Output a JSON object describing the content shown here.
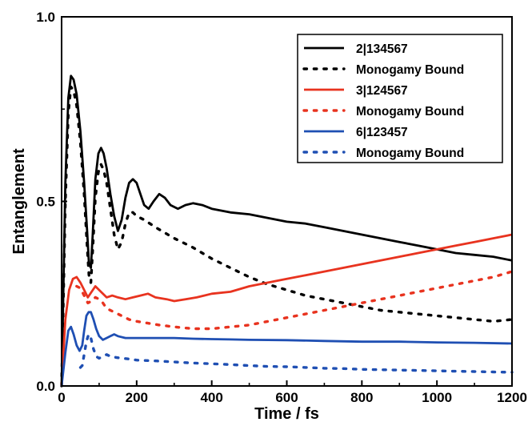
{
  "chart_data": {
    "type": "line",
    "title": "",
    "xlabel": "Time / fs",
    "ylabel": "Entanglement",
    "xlim": [
      0,
      1200
    ],
    "ylim": [
      0.0,
      1.0
    ],
    "x_ticks": [
      0,
      200,
      400,
      600,
      800,
      1000,
      1200
    ],
    "y_ticks": [
      0.0,
      0.5,
      1.0
    ],
    "x_tick_labels": [
      "0",
      "200",
      "400",
      "600",
      "800",
      "1000",
      "1200"
    ],
    "y_tick_labels": [
      "0.0",
      "0.5",
      "1.0"
    ],
    "grid": false,
    "legend_position": "top-right",
    "series": [
      {
        "name": "2|134567",
        "color": "#000000",
        "style": "solid",
        "x": [
          0,
          10,
          18,
          25,
          32,
          40,
          50,
          60,
          68,
          73,
          78,
          83,
          90,
          98,
          105,
          112,
          120,
          130,
          140,
          150,
          160,
          170,
          180,
          190,
          200,
          210,
          220,
          232,
          245,
          260,
          275,
          290,
          310,
          330,
          350,
          375,
          400,
          450,
          500,
          550,
          600,
          650,
          700,
          750,
          800,
          850,
          900,
          950,
          1000,
          1050,
          1100,
          1150,
          1200
        ],
        "y": [
          0.0,
          0.55,
          0.78,
          0.84,
          0.83,
          0.79,
          0.69,
          0.55,
          0.42,
          0.33,
          0.32,
          0.41,
          0.56,
          0.63,
          0.645,
          0.63,
          0.59,
          0.52,
          0.46,
          0.42,
          0.45,
          0.51,
          0.55,
          0.56,
          0.55,
          0.52,
          0.49,
          0.48,
          0.5,
          0.52,
          0.51,
          0.49,
          0.48,
          0.49,
          0.495,
          0.49,
          0.48,
          0.47,
          0.465,
          0.455,
          0.445,
          0.44,
          0.43,
          0.42,
          0.41,
          0.4,
          0.39,
          0.38,
          0.37,
          0.36,
          0.355,
          0.35,
          0.34
        ]
      },
      {
        "name": "Monogamy Bound",
        "color": "#000000",
        "style": "dotted",
        "x": [
          0,
          10,
          18,
          25,
          32,
          40,
          50,
          60,
          68,
          73,
          78,
          83,
          90,
          98,
          105,
          112,
          120,
          130,
          140,
          150,
          160,
          170,
          180,
          190,
          200,
          220,
          250,
          300,
          350,
          400,
          450,
          500,
          550,
          600,
          650,
          700,
          750,
          800,
          850,
          900,
          950,
          1000,
          1050,
          1100,
          1150,
          1200
        ],
        "y": [
          0.0,
          0.5,
          0.74,
          0.81,
          0.8,
          0.76,
          0.66,
          0.52,
          0.38,
          0.3,
          0.28,
          0.37,
          0.51,
          0.58,
          0.6,
          0.585,
          0.55,
          0.48,
          0.41,
          0.37,
          0.39,
          0.44,
          0.47,
          0.47,
          0.46,
          0.45,
          0.43,
          0.4,
          0.375,
          0.345,
          0.32,
          0.295,
          0.275,
          0.26,
          0.245,
          0.235,
          0.225,
          0.215,
          0.205,
          0.2,
          0.195,
          0.19,
          0.185,
          0.18,
          0.175,
          0.18
        ]
      },
      {
        "name": "3|124567",
        "color": "#e8331f",
        "style": "solid",
        "x": [
          0,
          10,
          20,
          30,
          40,
          50,
          60,
          70,
          80,
          90,
          100,
          110,
          120,
          135,
          150,
          170,
          190,
          210,
          230,
          250,
          280,
          300,
          330,
          360,
          400,
          450,
          500,
          550,
          600,
          650,
          700,
          750,
          800,
          850,
          900,
          950,
          1000,
          1050,
          1100,
          1150,
          1200
        ],
        "y": [
          0.0,
          0.18,
          0.26,
          0.29,
          0.295,
          0.28,
          0.26,
          0.24,
          0.255,
          0.27,
          0.26,
          0.25,
          0.24,
          0.245,
          0.24,
          0.235,
          0.24,
          0.245,
          0.25,
          0.24,
          0.235,
          0.23,
          0.235,
          0.24,
          0.25,
          0.255,
          0.27,
          0.28,
          0.29,
          0.3,
          0.31,
          0.32,
          0.33,
          0.34,
          0.35,
          0.36,
          0.37,
          0.38,
          0.39,
          0.4,
          0.41
        ]
      },
      {
        "name": "Monogamy Bound",
        "color": "#e8331f",
        "style": "dotted",
        "x": [
          40,
          50,
          60,
          70,
          80,
          90,
          100,
          110,
          120,
          140,
          160,
          180,
          200,
          230,
          260,
          300,
          350,
          400,
          450,
          500,
          550,
          600,
          650,
          700,
          750,
          800,
          850,
          900,
          950,
          1000,
          1050,
          1100,
          1150,
          1200
        ],
        "y": [
          0.27,
          0.265,
          0.245,
          0.225,
          0.23,
          0.24,
          0.235,
          0.225,
          0.21,
          0.2,
          0.19,
          0.18,
          0.175,
          0.17,
          0.165,
          0.16,
          0.155,
          0.155,
          0.16,
          0.165,
          0.175,
          0.185,
          0.195,
          0.205,
          0.215,
          0.225,
          0.235,
          0.245,
          0.255,
          0.265,
          0.275,
          0.285,
          0.295,
          0.31
        ]
      },
      {
        "name": "6|123457",
        "color": "#1f4fb3",
        "style": "solid",
        "x": [
          0,
          10,
          18,
          25,
          32,
          40,
          48,
          55,
          60,
          66,
          72,
          78,
          85,
          92,
          100,
          110,
          120,
          130,
          140,
          150,
          170,
          200,
          250,
          300,
          350,
          400,
          450,
          500,
          600,
          700,
          800,
          900,
          1000,
          1100,
          1200
        ],
        "y": [
          0.0,
          0.09,
          0.15,
          0.16,
          0.14,
          0.11,
          0.095,
          0.11,
          0.15,
          0.19,
          0.2,
          0.2,
          0.18,
          0.155,
          0.135,
          0.125,
          0.13,
          0.135,
          0.14,
          0.135,
          0.13,
          0.13,
          0.13,
          0.13,
          0.128,
          0.127,
          0.126,
          0.125,
          0.124,
          0.122,
          0.12,
          0.12,
          0.118,
          0.117,
          0.115
        ]
      },
      {
        "name": "Monogamy Bound",
        "color": "#1f4fb3",
        "style": "dotted",
        "x": [
          50,
          55,
          60,
          66,
          72,
          78,
          85,
          92,
          100,
          110,
          120,
          130,
          140,
          160,
          180,
          200,
          250,
          300,
          350,
          400,
          450,
          500,
          550,
          600,
          650,
          700,
          750,
          800,
          850,
          900,
          950,
          1000,
          1050,
          1100,
          1150,
          1200
        ],
        "y": [
          0.05,
          0.055,
          0.085,
          0.12,
          0.14,
          0.13,
          0.1,
          0.08,
          0.075,
          0.08,
          0.085,
          0.08,
          0.078,
          0.075,
          0.073,
          0.07,
          0.068,
          0.065,
          0.062,
          0.06,
          0.058,
          0.055,
          0.053,
          0.052,
          0.05,
          0.048,
          0.047,
          0.045,
          0.044,
          0.043,
          0.042,
          0.041,
          0.04,
          0.039,
          0.038,
          0.037
        ]
      }
    ]
  }
}
